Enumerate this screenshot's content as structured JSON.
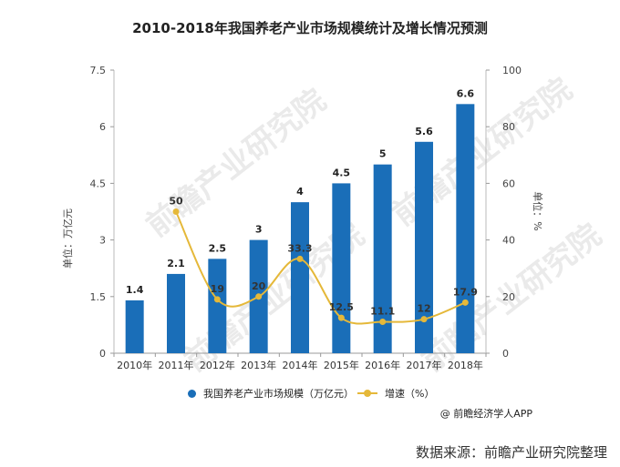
{
  "title": "2010-2018年我国养老产业市场规模统计及增长情况预测",
  "watermark": "前瞻产业研究院",
  "credit": "@ 前瞻经济学人APP",
  "source": "数据来源：前瞻产业研究院整理",
  "chart_data": {
    "type": "bar",
    "categories": [
      "2010年",
      "2011年",
      "2012年",
      "2013年",
      "2014年",
      "2015年",
      "2016年",
      "2017年",
      "2018年"
    ],
    "series": [
      {
        "name": "我国养老产业市场规模（万亿元）",
        "type": "bar",
        "axis": "left",
        "values": [
          1.4,
          2.1,
          2.5,
          3,
          4,
          4.5,
          5,
          5.6,
          6.6
        ],
        "labels": [
          "1.4",
          "2.1",
          "2.5",
          "3",
          "4",
          "4.5",
          "5",
          "5.6",
          "6.6"
        ],
        "color": "#1a6eb8"
      },
      {
        "name": "增速（%）",
        "type": "line",
        "axis": "right",
        "values": [
          null,
          50,
          19,
          20,
          33.3,
          12.5,
          11.1,
          12,
          17.9
        ],
        "labels": [
          "",
          "50",
          "19",
          "20",
          "33.3",
          "12.5",
          "11.1",
          "12",
          "17.9"
        ],
        "color": "#e5b839"
      }
    ],
    "ylabel": "单位：万亿元",
    "y2label": "单位：%",
    "ylim": [
      0,
      7.5
    ],
    "yticks": [
      "0",
      "1.5",
      "3",
      "4.5",
      "6",
      "7.5"
    ],
    "y2lim": [
      0,
      100
    ],
    "y2ticks": [
      "0",
      "20",
      "40",
      "60",
      "80",
      "100"
    ],
    "grid": false,
    "legend": "bottom"
  }
}
